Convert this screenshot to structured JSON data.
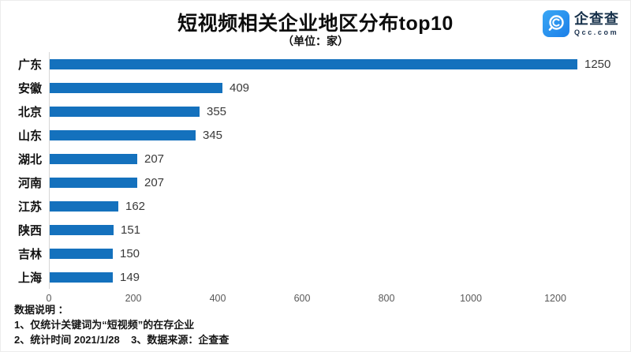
{
  "header": {
    "title": "短视频相关企业地区分布top10",
    "subtitle": "（单位：家）"
  },
  "logo": {
    "name": "企查查",
    "domain": "Qcc.com",
    "brand_blue": "#1e88e5"
  },
  "chart_data": {
    "type": "bar",
    "orientation": "horizontal",
    "title": "短视频相关企业地区分布top10",
    "unit_label": "（单位：家）",
    "categories": [
      "广东",
      "安徽",
      "北京",
      "山东",
      "湖北",
      "河南",
      "江苏",
      "陕西",
      "吉林",
      "上海"
    ],
    "values": [
      1250,
      409,
      355,
      345,
      207,
      207,
      162,
      151,
      150,
      149
    ],
    "xticks": [
      0,
      200,
      400,
      600,
      800,
      1000,
      1200
    ],
    "xlim": [
      0,
      1380
    ],
    "grid": false,
    "value_labels": true,
    "bar_color": "#1471bd",
    "axis_line_color": "#d6d6d6",
    "legend": "none"
  },
  "footer": {
    "heading": "数据说明 ：",
    "note1": "1、仅统计关键词为“短视频”的在存企业",
    "note2": "2、统计时间 2021/1/28    3、数据来源：企查查"
  }
}
